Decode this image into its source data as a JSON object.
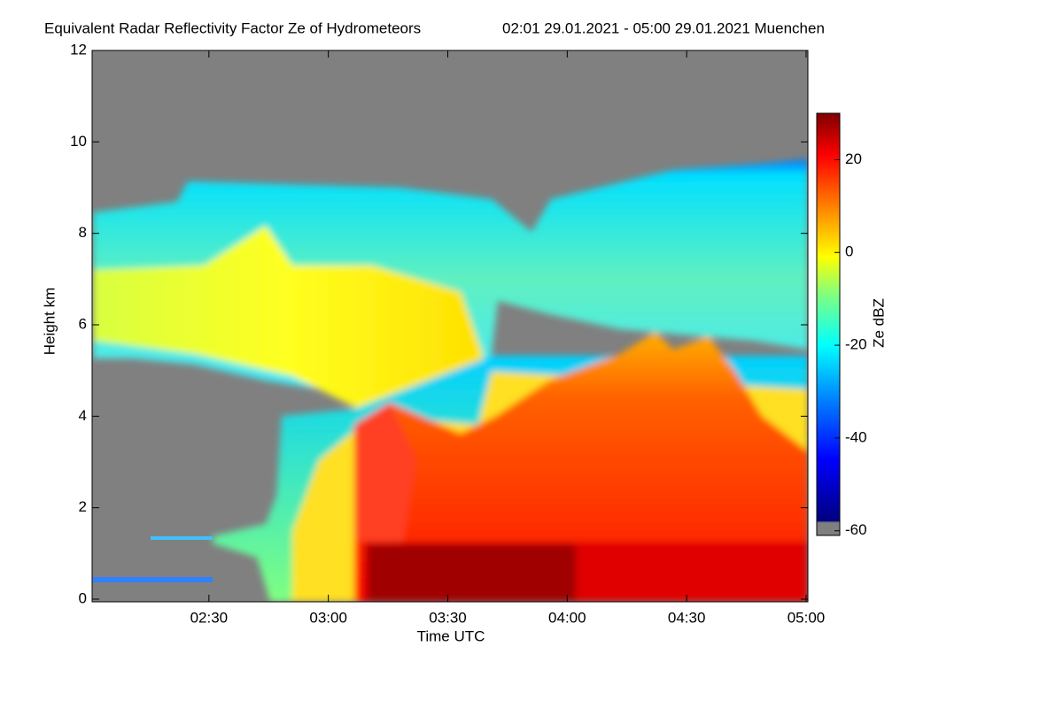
{
  "chart_data": {
    "type": "heatmap",
    "title": "Equivalent Radar Reflectivity Factor Ze of Hydrometeors",
    "subtitle": "02:01 29.01.2021 - 05:00 29.01.2021 Muenchen",
    "x_label": "Time UTC",
    "y_label": "Height km",
    "xlim": [
      121,
      300
    ],
    "xticks": [
      {
        "value": 150,
        "label": "02:30"
      },
      {
        "value": 180,
        "label": "03:00"
      },
      {
        "value": 210,
        "label": "03:30"
      },
      {
        "value": 240,
        "label": "04:00"
      },
      {
        "value": 270,
        "label": "04:30"
      },
      {
        "value": 300,
        "label": "05:00"
      }
    ],
    "ylim": [
      0,
      12
    ],
    "yticks": [
      0,
      2,
      4,
      6,
      8,
      10,
      12
    ],
    "colorbar": {
      "label": "Ze dBZ",
      "lim": [
        -61,
        30
      ],
      "ticks": [
        -60,
        -40,
        -20,
        0,
        20
      ]
    }
  }
}
